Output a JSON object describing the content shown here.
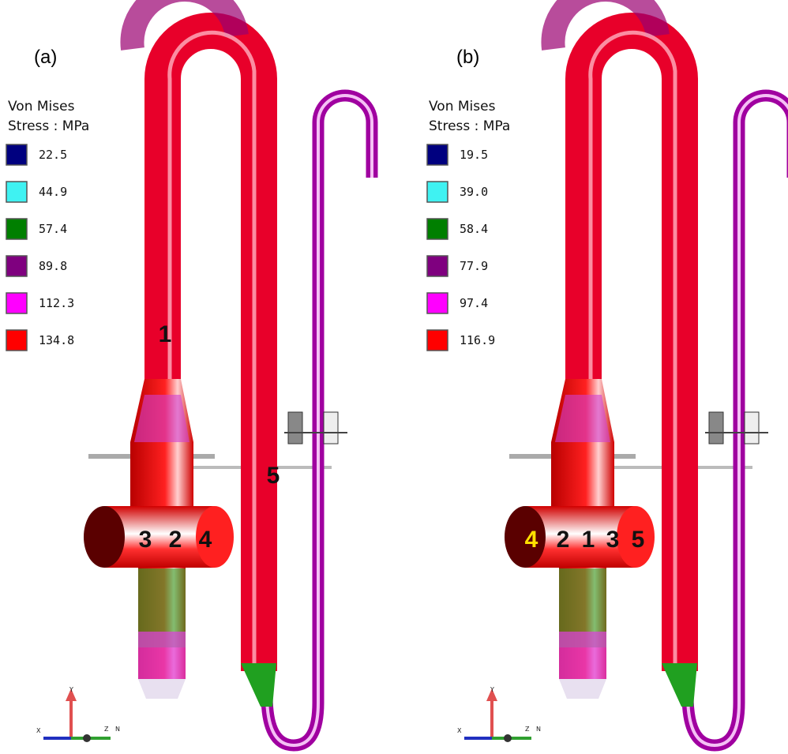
{
  "panels": [
    {
      "label": "(a)",
      "legend": {
        "title": [
          "Von Mises",
          "Stress : MPa"
        ],
        "entries": [
          {
            "value": "22.5",
            "color": "#00007f"
          },
          {
            "value": "44.9",
            "color": "#3ff2f2"
          },
          {
            "value": "57.4",
            "color": "#007f00"
          },
          {
            "value": "89.8",
            "color": "#7f007f"
          },
          {
            "value": "112.3",
            "color": "#ff00ff"
          },
          {
            "value": "134.8",
            "color": "#ff0000"
          }
        ]
      },
      "points": [
        "1",
        "5",
        "3",
        "2",
        "4"
      ],
      "axes": [
        "Y",
        "X",
        "Z",
        "N"
      ]
    },
    {
      "label": "(b)",
      "legend": {
        "title": [
          "Von Mises",
          "Stress : MPa"
        ],
        "entries": [
          {
            "value": "19.5",
            "color": "#00007f"
          },
          {
            "value": "39.0",
            "color": "#3ff2f2"
          },
          {
            "value": "58.4",
            "color": "#007f00"
          },
          {
            "value": "77.9",
            "color": "#7f007f"
          },
          {
            "value": "97.4",
            "color": "#ff00ff"
          },
          {
            "value": "116.9",
            "color": "#ff0000"
          }
        ]
      },
      "points": [
        "4",
        "2",
        "1",
        "3",
        "5"
      ],
      "axes": [
        "Y",
        "X",
        "Z",
        "N"
      ]
    }
  ]
}
